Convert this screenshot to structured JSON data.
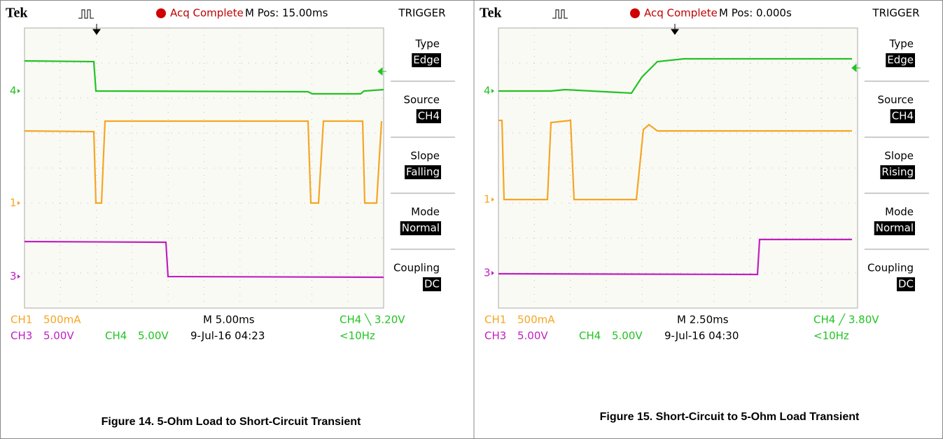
{
  "figures": [
    {
      "header": {
        "brand": "Tek",
        "status": "Acq Complete",
        "position": "M Pos: 15.00ms"
      },
      "menu": {
        "title": "TRIGGER",
        "items": [
          {
            "label": "Type",
            "value": "Edge"
          },
          {
            "label": "Source",
            "value": "CH4"
          },
          {
            "label": "Slope",
            "value": "Falling"
          },
          {
            "label": "Mode",
            "value": "Normal"
          },
          {
            "label": "Coupling",
            "value": "DC"
          }
        ]
      },
      "channel_markers": [
        "4",
        "1",
        "3"
      ],
      "readout": {
        "ch1": "CH1",
        "ch1_scale": "500mA",
        "ch3": "CH3",
        "ch3_scale": "5.00V",
        "ch4": "CH4",
        "ch4_scale": "5.00V",
        "timebase": "M 5.00ms",
        "date": "9-Jul-16 04:23",
        "trigger": "CH4 ╲ 3.20V",
        "frequency": "<10Hz"
      },
      "caption": "Figure 14. 5-Ohm Load to Short-Circuit Transient"
    },
    {
      "header": {
        "brand": "Tek",
        "status": "Acq Complete",
        "position": "M Pos: 0.000s"
      },
      "menu": {
        "title": "TRIGGER",
        "items": [
          {
            "label": "Type",
            "value": "Edge"
          },
          {
            "label": "Source",
            "value": "CH4"
          },
          {
            "label": "Slope",
            "value": "Rising"
          },
          {
            "label": "Mode",
            "value": "Normal"
          },
          {
            "label": "Coupling",
            "value": "DC"
          }
        ]
      },
      "channel_markers": [
        "4",
        "1",
        "3"
      ],
      "readout": {
        "ch1": "CH1",
        "ch1_scale": "500mA",
        "ch3": "CH3",
        "ch3_scale": "5.00V",
        "ch4": "CH4",
        "ch4_scale": "5.00V",
        "timebase": "M 2.50ms",
        "date": "9-Jul-16 04:30",
        "trigger": "CH4 ╱ 3.80V",
        "frequency": "<10Hz"
      },
      "caption": "Figure 15. Short-Circuit to 5-Ohm Load Transient"
    }
  ]
}
